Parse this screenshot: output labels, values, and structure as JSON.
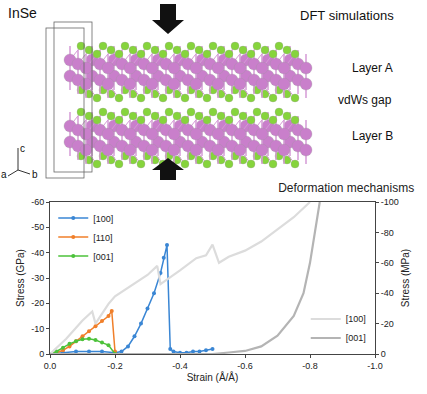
{
  "diagram": {
    "title": "InSe",
    "label": "DFT simulations",
    "layers": [
      "Layer A",
      "vdWs gap",
      "Layer B"
    ],
    "axes": [
      "a",
      "b",
      "c"
    ]
  },
  "chart_data": {
    "type": "line",
    "title": "Deformation mechanisms",
    "x_label": "Strain (Å/Å)",
    "y_label": "Stress (GPa)",
    "y2_label": "Stress (MPa)",
    "xlim": [
      0,
      -1
    ],
    "xticks": [
      {
        "value": 0,
        "label": "0.0"
      },
      -0.2,
      -0.4,
      -0.6,
      -0.8,
      {
        "value": -1,
        "label": "-1.0"
      }
    ],
    "ylim": [
      0,
      -60
    ],
    "yticks": [
      0,
      -10,
      -20,
      -30,
      -40,
      -50,
      -60
    ],
    "y2lim": [
      0,
      -100
    ],
    "y2ticks": [
      0,
      -20,
      -40,
      -60,
      -80,
      -100
    ],
    "legend": "top left",
    "series": [
      {
        "name": "[100]",
        "color": "#3a86d4",
        "marker": "circle",
        "line_style": "solid",
        "x": [
          0,
          -0.04,
          -0.08,
          -0.12,
          -0.16,
          -0.2,
          -0.22,
          -0.24,
          -0.26,
          -0.28,
          -0.3,
          -0.32,
          -0.34,
          -0.35,
          -0.36,
          -0.37,
          -0.38,
          -0.4,
          -0.42,
          -0.44,
          -0.46,
          -0.48,
          -0.5
        ],
        "values": [
          0,
          -0.5,
          -1,
          -1,
          -1,
          -0.5,
          -1,
          -3,
          -7,
          -12,
          -18,
          -24,
          -32,
          -38,
          -43,
          -2,
          -1,
          -0.5,
          -0.5,
          -1,
          -1,
          -1.5,
          -2
        ]
      },
      {
        "name": "[110]",
        "color": "#f07f2a",
        "marker": "circle",
        "line_style": "solid",
        "x": [
          0,
          -0.02,
          -0.04,
          -0.06,
          -0.08,
          -0.1,
          -0.12,
          -0.14,
          -0.16,
          -0.18,
          -0.19,
          -0.2
        ],
        "values": [
          0,
          -0.5,
          -1.5,
          -3,
          -5,
          -7,
          -9,
          -11,
          -13,
          -15,
          -17,
          -1
        ]
      },
      {
        "name": "[001]",
        "color": "#4cc23a",
        "marker": "circle",
        "line_style": "solid",
        "x": [
          0,
          -0.02,
          -0.04,
          -0.06,
          -0.08,
          -0.1,
          -0.12,
          -0.14,
          -0.16,
          -0.18,
          -0.2
        ],
        "values": [
          0,
          -1,
          -2.5,
          -4,
          -5,
          -5.8,
          -6,
          -5.5,
          -4.5,
          -3.5,
          0
        ]
      },
      {
        "name": "[100]",
        "color": "#dcdcdc",
        "axis": "y2",
        "line_style": "solid",
        "legend": "bottom right",
        "x": [
          0,
          -0.05,
          -0.1,
          -0.13,
          -0.14,
          -0.18,
          -0.2,
          -0.25,
          -0.3,
          -0.33,
          -0.34,
          -0.4,
          -0.45,
          -0.48,
          -0.5,
          -0.52,
          -0.55,
          -0.6,
          -0.65,
          -0.7,
          -0.75,
          -0.8
        ],
        "values": [
          0,
          -10,
          -22,
          -28,
          -20,
          -33,
          -38,
          -45,
          -52,
          -58,
          -46,
          -55,
          -63,
          -65,
          -72,
          -60,
          -64,
          -68,
          -74,
          -82,
          -90,
          -100
        ]
      },
      {
        "name": "[001]",
        "color": "#b4b4b4",
        "axis": "y2",
        "line_style": "solid",
        "legend": "bottom right",
        "x": [
          0,
          -0.1,
          -0.2,
          -0.3,
          -0.4,
          -0.5,
          -0.55,
          -0.6,
          -0.65,
          -0.7,
          -0.75,
          -0.78,
          -0.8,
          -0.82,
          -0.83
        ],
        "values": [
          0,
          0,
          0,
          0,
          0,
          0,
          -1,
          -2,
          -5,
          -12,
          -25,
          -40,
          -60,
          -85,
          -100
        ]
      }
    ]
  }
}
